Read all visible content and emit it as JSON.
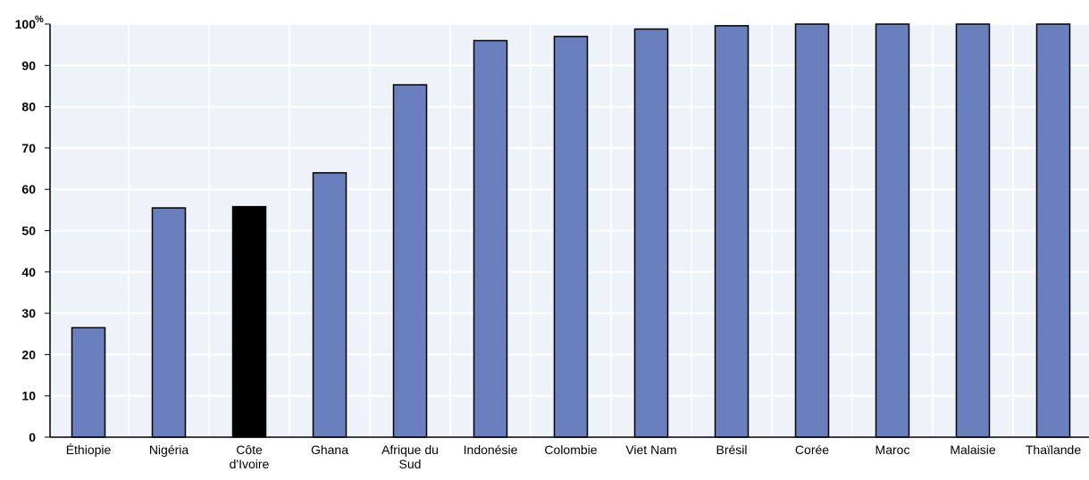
{
  "chart_data": {
    "type": "bar",
    "unit_label": "%",
    "categories": [
      [
        "Éthiopie"
      ],
      [
        "Nigéria"
      ],
      [
        "Côte",
        "d'Ivoire"
      ],
      [
        "Ghana"
      ],
      [
        "Afrique du",
        "Sud"
      ],
      [
        "Indonésie"
      ],
      [
        "Colombie"
      ],
      [
        "Viet Nam"
      ],
      [
        "Brésil"
      ],
      [
        "Corée"
      ],
      [
        "Maroc"
      ],
      [
        "Malaisie"
      ],
      [
        "Thaïlande"
      ]
    ],
    "values": [
      26.5,
      55.5,
      55.8,
      64,
      85.3,
      96,
      97,
      98.8,
      99.6,
      100,
      100,
      100,
      100
    ],
    "highlight_index": 2,
    "ylim": [
      0,
      100
    ],
    "yticks": [
      0,
      10,
      20,
      30,
      40,
      50,
      60,
      70,
      80,
      90,
      100
    ],
    "ytick_labels": [
      "0",
      "10",
      "20",
      "30",
      "40",
      "50",
      "60",
      "70",
      "80",
      "90",
      "100"
    ],
    "grid": true,
    "colors": {
      "bar": "#6a7fbd",
      "highlight": "#000000",
      "background": "#eef2f9",
      "grid": "#ffffff",
      "edge": "#000000"
    }
  }
}
